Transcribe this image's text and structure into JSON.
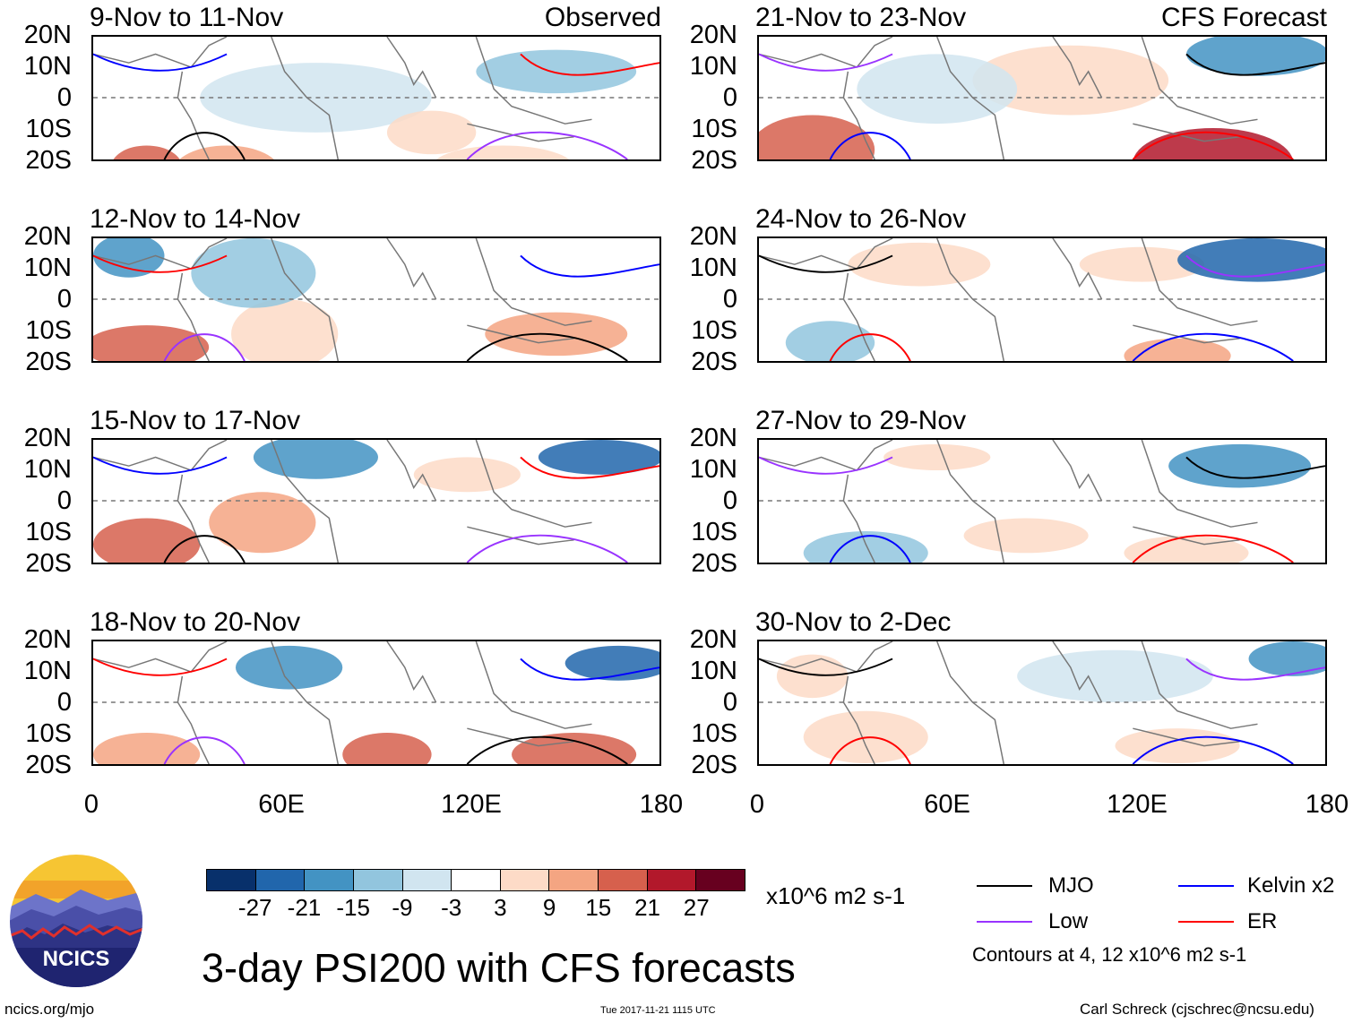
{
  "panels": [
    {
      "title": "9-Nov to 11-Nov",
      "label": "Observed"
    },
    {
      "title": "21-Nov to 23-Nov",
      "label": "CFS Forecast"
    },
    {
      "title": "12-Nov to 14-Nov",
      "label": ""
    },
    {
      "title": "24-Nov to 26-Nov",
      "label": ""
    },
    {
      "title": "15-Nov to 17-Nov",
      "label": ""
    },
    {
      "title": "27-Nov to 29-Nov",
      "label": ""
    },
    {
      "title": "18-Nov to 20-Nov",
      "label": ""
    },
    {
      "title": "30-Nov to 2-Dec",
      "label": ""
    }
  ],
  "y_axis_labels": [
    "20N",
    "10N",
    "0",
    "10S",
    "20S"
  ],
  "x_axis_labels": [
    "0",
    "60E",
    "120E",
    "180"
  ],
  "colorbar": {
    "ticks": [
      "-27",
      "-21",
      "-15",
      "-9",
      "-3",
      "3",
      "9",
      "15",
      "21",
      "27"
    ],
    "colors": [
      "#08306b",
      "#2166ac",
      "#4393c3",
      "#92c5de",
      "#d1e5f0",
      "#ffffff",
      "#fddbc7",
      "#f4a582",
      "#d6604d",
      "#b2182b",
      "#67001f"
    ],
    "units": "x10^6 m2 s-1"
  },
  "title": "3-day PSI200 with CFS forecasts",
  "legend": [
    {
      "label": "MJO",
      "color": "#000000"
    },
    {
      "label": "Kelvin x2",
      "color": "#0000ff"
    },
    {
      "label": "Low",
      "color": "#9933ff"
    },
    {
      "label": "ER",
      "color": "#ff0000"
    }
  ],
  "contours_note": "Contours at 4, 12 x10^6 m2 s-1",
  "logo_text": "NCICS",
  "footer_left": "ncics.org/mjo",
  "footer_center": "Tue 2017-11-21 1115 UTC",
  "footer_right": "Carl Schreck (cjschrec@ncsu.edu)"
}
